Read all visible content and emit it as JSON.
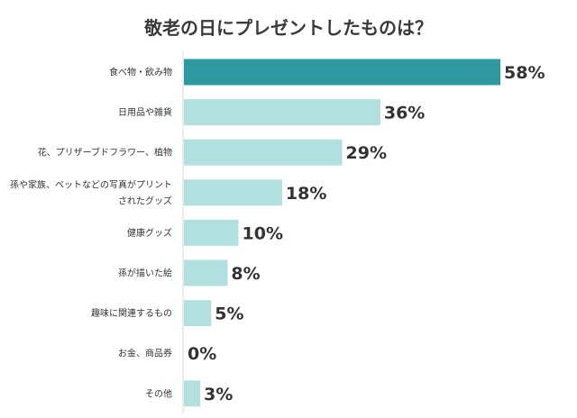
{
  "chart_data": {
    "type": "bar",
    "orientation": "horizontal",
    "title": "敬老の日にプレゼントしたものは？",
    "categories": [
      [
        "食べ物・飲み物"
      ],
      [
        "日用品や雑貨"
      ],
      [
        "花、プリザーブドフラワー、植物"
      ],
      [
        "孫や家族、ペットなどの写真がプリント",
        "されたグッズ"
      ],
      [
        "健康グッズ"
      ],
      [
        "孫が描いた絵"
      ],
      [
        "趣味に関連するもの"
      ],
      [
        "お金、商品券"
      ],
      [
        "その他"
      ]
    ],
    "values": [
      58,
      36,
      29,
      18,
      10,
      8,
      5,
      0,
      3
    ],
    "value_labels": [
      "58%",
      "36%",
      "29%",
      "18%",
      "10%",
      "8%",
      "5%",
      "0%",
      "3%"
    ],
    "unit": "%",
    "xlim": [
      0,
      58
    ],
    "grid": false,
    "legend": "none",
    "colors": {
      "highlight": "#2e9aa0",
      "bar": "#b2e0de",
      "axis": "#d9d9d9"
    }
  }
}
